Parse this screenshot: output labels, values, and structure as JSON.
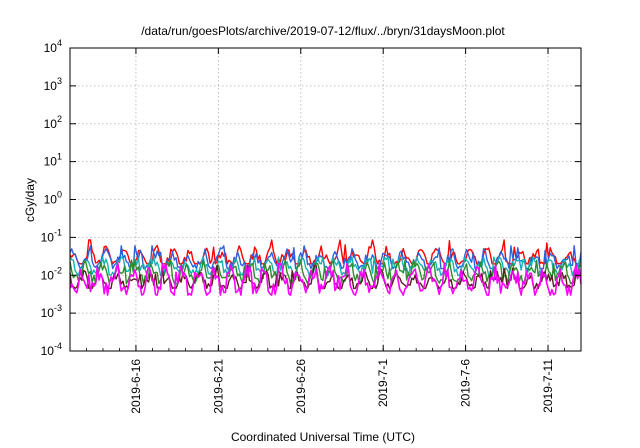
{
  "chart_data": {
    "type": "line",
    "title": "/data/run/goesPlots/archive/2019-07-12/flux/../bryn/31daysMoon.plot",
    "xlabel": "Coordinated Universal Time (UTC)",
    "ylabel": "cGy/day",
    "yscale": "log",
    "ylim": [
      0.0001,
      10000
    ],
    "xlim": [
      "2019-06-12",
      "2019-07-13"
    ],
    "grid": true,
    "legend": "none",
    "x_ticks": [
      "2019-6-16",
      "2019-6-21",
      "2019-6-26",
      "2019-7-1",
      "2019-7-6",
      "2019-7-11"
    ],
    "x_tick_dates": [
      "2019-06-16",
      "2019-06-21",
      "2019-06-26",
      "2019-07-01",
      "2019-07-06",
      "2019-07-11"
    ],
    "y_ticks": [
      {
        "base": "10",
        "exp": "4",
        "value": 10000
      },
      {
        "base": "10",
        "exp": "3",
        "value": 1000
      },
      {
        "base": "10",
        "exp": "2",
        "value": 100
      },
      {
        "base": "10",
        "exp": "1",
        "value": 10
      },
      {
        "base": "10",
        "exp": "0",
        "value": 1
      },
      {
        "base": "10",
        "exp": "-1",
        "value": 0.1
      },
      {
        "base": "10",
        "exp": "-2",
        "value": 0.01
      },
      {
        "base": "10",
        "exp": "-3",
        "value": 0.001
      },
      {
        "base": "10",
        "exp": "-4",
        "value": 0.0001
      }
    ],
    "series": [
      {
        "color": "#ff0000",
        "base": 0.028,
        "amplitude": 0.55,
        "min": 0.02,
        "max": 0.085
      },
      {
        "color": "#2a62e0",
        "base": 0.024,
        "amplitude": 0.55,
        "min": 0.015,
        "max": 0.06
      },
      {
        "color": "#16b0b0",
        "base": 0.016,
        "amplitude": 0.5,
        "min": 0.01,
        "max": 0.03
      },
      {
        "color": "#2e8b2e",
        "base": 0.011,
        "amplitude": 0.55,
        "min": 0.006,
        "max": 0.025
      },
      {
        "color": "#5a1f1f",
        "base": 0.0065,
        "amplitude": 0.5,
        "min": 0.0045,
        "max": 0.018
      },
      {
        "color": "#ff00ff",
        "base": 0.0065,
        "amplitude": 0.8,
        "min": 0.003,
        "max": 0.02
      }
    ]
  }
}
